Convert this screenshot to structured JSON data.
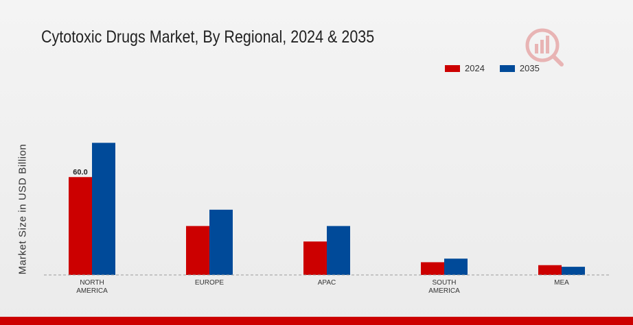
{
  "chart_data": {
    "type": "bar",
    "title": "Cytotoxic Drugs Market, By Regional, 2024 & 2035",
    "xlabel": "",
    "ylabel": "Market Size in USD Billion",
    "categories": [
      "NORTH\nAMERICA",
      "EUROPE",
      "APAC",
      "SOUTH\nAMERICA",
      "MEA"
    ],
    "series": [
      {
        "name": "2024",
        "color": "#cc0000",
        "values": [
          60.0,
          30.0,
          20.5,
          7.8,
          6.0
        ]
      },
      {
        "name": "2035",
        "color": "#004a99",
        "values": [
          81.0,
          40.0,
          30.0,
          10.0,
          5.0
        ]
      }
    ],
    "data_labels": [
      {
        "series": 0,
        "index": 0,
        "text": "60.0"
      }
    ],
    "ylim": [
      0,
      95
    ],
    "grid": false,
    "legend": "top-right"
  }
}
